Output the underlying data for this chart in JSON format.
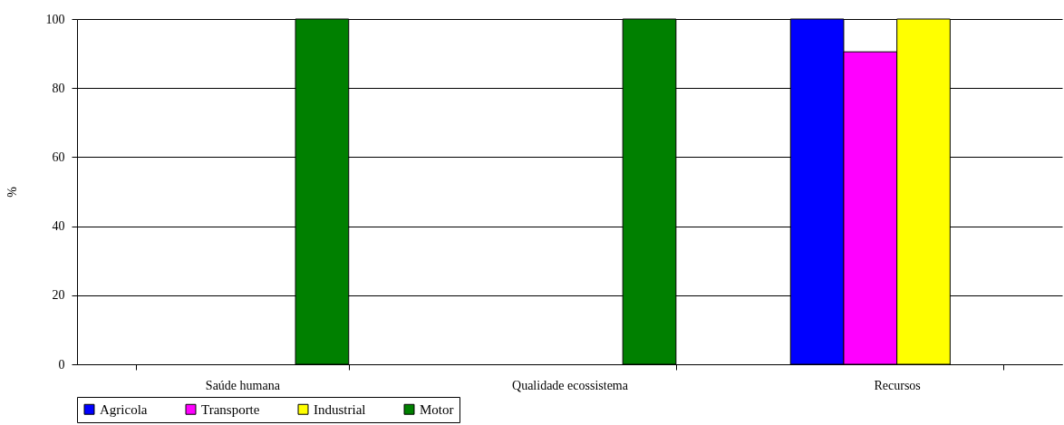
{
  "chart_data": {
    "type": "bar",
    "ylabel": "%",
    "categories": [
      "Saúde humana",
      "Qualidade ecossistema",
      "Recursos"
    ],
    "series": [
      {
        "name": "Agricola",
        "color": "#0000ff",
        "values": [
          0,
          0,
          100
        ]
      },
      {
        "name": "Transporte",
        "color": "#ff00ff",
        "values": [
          0,
          0,
          90.5
        ]
      },
      {
        "name": "Industrial",
        "color": "#ffff00",
        "values": [
          0,
          0,
          100
        ]
      },
      {
        "name": "Motor",
        "color": "#008000",
        "values": [
          100,
          100,
          0
        ]
      }
    ],
    "ylim": [
      0,
      100
    ],
    "yticks": [
      0,
      20,
      40,
      60,
      80,
      100
    ],
    "grid": "y",
    "legend": "bottom"
  }
}
